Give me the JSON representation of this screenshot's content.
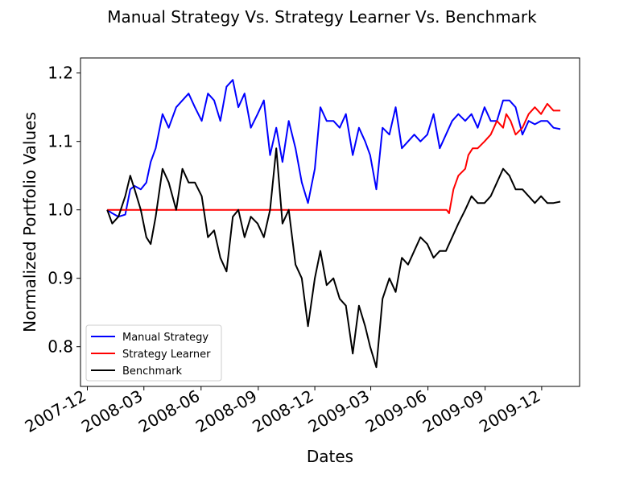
{
  "chart_data": {
    "type": "line",
    "title": "Manual Strategy Vs. Strategy Learner Vs. Benchmark",
    "xlabel": "Dates",
    "ylabel": "Normalized Portfolio Values",
    "xlim": [
      "2007-11-20",
      "2010-01-31"
    ],
    "ylim": [
      0.742,
      1.222
    ],
    "x_ticks": [
      "2007-12",
      "2008-03",
      "2008-06",
      "2008-09",
      "2008-12",
      "2009-03",
      "2009-06",
      "2009-09",
      "2009-12"
    ],
    "y_ticks": [
      "0.8",
      "0.9",
      "1.0",
      "1.1",
      "1.2"
    ],
    "legend_position": "lower-left",
    "grid": false,
    "series": [
      {
        "name": "Manual Strategy",
        "color": "#0000ff",
        "points": [
          [
            "2008-01-02",
            1.0
          ],
          [
            "2008-01-10",
            0.995
          ],
          [
            "2008-01-20",
            0.99
          ],
          [
            "2008-01-31",
            0.993
          ],
          [
            "2008-02-08",
            1.03
          ],
          [
            "2008-02-15",
            1.035
          ],
          [
            "2008-02-25",
            1.03
          ],
          [
            "2008-03-05",
            1.04
          ],
          [
            "2008-03-12",
            1.07
          ],
          [
            "2008-03-20",
            1.09
          ],
          [
            "2008-03-31",
            1.14
          ],
          [
            "2008-04-10",
            1.12
          ],
          [
            "2008-04-22",
            1.15
          ],
          [
            "2008-05-02",
            1.16
          ],
          [
            "2008-05-12",
            1.17
          ],
          [
            "2008-05-22",
            1.15
          ],
          [
            "2008-06-02",
            1.13
          ],
          [
            "2008-06-12",
            1.17
          ],
          [
            "2008-06-22",
            1.16
          ],
          [
            "2008-07-02",
            1.13
          ],
          [
            "2008-07-12",
            1.18
          ],
          [
            "2008-07-22",
            1.19
          ],
          [
            "2008-07-31",
            1.15
          ],
          [
            "2008-08-10",
            1.17
          ],
          [
            "2008-08-20",
            1.12
          ],
          [
            "2008-08-31",
            1.14
          ],
          [
            "2008-09-10",
            1.16
          ],
          [
            "2008-09-20",
            1.08
          ],
          [
            "2008-09-30",
            1.12
          ],
          [
            "2008-10-10",
            1.07
          ],
          [
            "2008-10-20",
            1.13
          ],
          [
            "2008-10-31",
            1.09
          ],
          [
            "2008-11-10",
            1.04
          ],
          [
            "2008-11-20",
            1.01
          ],
          [
            "2008-12-01",
            1.06
          ],
          [
            "2008-12-10",
            1.15
          ],
          [
            "2008-12-20",
            1.13
          ],
          [
            "2008-12-31",
            1.13
          ],
          [
            "2009-01-10",
            1.12
          ],
          [
            "2009-01-20",
            1.14
          ],
          [
            "2009-01-31",
            1.08
          ],
          [
            "2009-02-10",
            1.12
          ],
          [
            "2009-02-20",
            1.1
          ],
          [
            "2009-02-28",
            1.08
          ],
          [
            "2009-03-10",
            1.03
          ],
          [
            "2009-03-20",
            1.12
          ],
          [
            "2009-03-31",
            1.11
          ],
          [
            "2009-04-10",
            1.15
          ],
          [
            "2009-04-20",
            1.09
          ],
          [
            "2009-04-30",
            1.1
          ],
          [
            "2009-05-10",
            1.11
          ],
          [
            "2009-05-20",
            1.1
          ],
          [
            "2009-05-31",
            1.11
          ],
          [
            "2009-06-10",
            1.14
          ],
          [
            "2009-06-20",
            1.09
          ],
          [
            "2009-06-30",
            1.11
          ],
          [
            "2009-07-10",
            1.13
          ],
          [
            "2009-07-20",
            1.14
          ],
          [
            "2009-07-31",
            1.13
          ],
          [
            "2009-08-10",
            1.14
          ],
          [
            "2009-08-20",
            1.12
          ],
          [
            "2009-08-31",
            1.15
          ],
          [
            "2009-09-10",
            1.13
          ],
          [
            "2009-09-20",
            1.13
          ],
          [
            "2009-09-30",
            1.16
          ],
          [
            "2009-10-10",
            1.16
          ],
          [
            "2009-10-20",
            1.15
          ],
          [
            "2009-10-31",
            1.11
          ],
          [
            "2009-11-10",
            1.13
          ],
          [
            "2009-11-20",
            1.125
          ],
          [
            "2009-11-30",
            1.13
          ],
          [
            "2009-12-10",
            1.13
          ],
          [
            "2009-12-20",
            1.12
          ],
          [
            "2009-12-31",
            1.118
          ]
        ]
      },
      {
        "name": "Strategy Learner",
        "color": "#ff0000",
        "points": [
          [
            "2008-01-02",
            1.0
          ],
          [
            "2009-07-01",
            1.0
          ],
          [
            "2009-07-05",
            0.995
          ],
          [
            "2009-07-12",
            1.03
          ],
          [
            "2009-07-20",
            1.05
          ],
          [
            "2009-07-31",
            1.06
          ],
          [
            "2009-08-05",
            1.08
          ],
          [
            "2009-08-12",
            1.09
          ],
          [
            "2009-08-20",
            1.09
          ],
          [
            "2009-08-31",
            1.1
          ],
          [
            "2009-09-10",
            1.11
          ],
          [
            "2009-09-20",
            1.13
          ],
          [
            "2009-09-30",
            1.12
          ],
          [
            "2009-10-05",
            1.14
          ],
          [
            "2009-10-12",
            1.13
          ],
          [
            "2009-10-20",
            1.11
          ],
          [
            "2009-10-31",
            1.12
          ],
          [
            "2009-11-10",
            1.14
          ],
          [
            "2009-11-20",
            1.15
          ],
          [
            "2009-11-30",
            1.14
          ],
          [
            "2009-12-10",
            1.155
          ],
          [
            "2009-12-20",
            1.145
          ],
          [
            "2009-12-31",
            1.145
          ]
        ]
      },
      {
        "name": "Benchmark",
        "color": "#000000",
        "points": [
          [
            "2008-01-02",
            1.0
          ],
          [
            "2008-01-10",
            0.98
          ],
          [
            "2008-01-20",
            0.99
          ],
          [
            "2008-01-31",
            1.02
          ],
          [
            "2008-02-08",
            1.05
          ],
          [
            "2008-02-15",
            1.03
          ],
          [
            "2008-02-25",
            1.0
          ],
          [
            "2008-03-05",
            0.96
          ],
          [
            "2008-03-12",
            0.95
          ],
          [
            "2008-03-20",
            0.99
          ],
          [
            "2008-03-31",
            1.06
          ],
          [
            "2008-04-10",
            1.04
          ],
          [
            "2008-04-22",
            1.0
          ],
          [
            "2008-05-02",
            1.06
          ],
          [
            "2008-05-12",
            1.04
          ],
          [
            "2008-05-22",
            1.04
          ],
          [
            "2008-06-02",
            1.02
          ],
          [
            "2008-06-12",
            0.96
          ],
          [
            "2008-06-22",
            0.97
          ],
          [
            "2008-07-02",
            0.93
          ],
          [
            "2008-07-12",
            0.91
          ],
          [
            "2008-07-22",
            0.99
          ],
          [
            "2008-07-31",
            1.0
          ],
          [
            "2008-08-10",
            0.96
          ],
          [
            "2008-08-20",
            0.99
          ],
          [
            "2008-08-31",
            0.98
          ],
          [
            "2008-09-10",
            0.96
          ],
          [
            "2008-09-20",
            1.0
          ],
          [
            "2008-09-30",
            1.09
          ],
          [
            "2008-10-10",
            0.98
          ],
          [
            "2008-10-20",
            1.0
          ],
          [
            "2008-10-31",
            0.92
          ],
          [
            "2008-11-10",
            0.9
          ],
          [
            "2008-11-20",
            0.83
          ],
          [
            "2008-12-01",
            0.9
          ],
          [
            "2008-12-10",
            0.94
          ],
          [
            "2008-12-20",
            0.89
          ],
          [
            "2008-12-31",
            0.9
          ],
          [
            "2009-01-10",
            0.87
          ],
          [
            "2009-01-20",
            0.86
          ],
          [
            "2009-01-31",
            0.79
          ],
          [
            "2009-02-10",
            0.86
          ],
          [
            "2009-02-20",
            0.83
          ],
          [
            "2009-02-28",
            0.8
          ],
          [
            "2009-03-10",
            0.77
          ],
          [
            "2009-03-20",
            0.87
          ],
          [
            "2009-03-31",
            0.9
          ],
          [
            "2009-04-10",
            0.88
          ],
          [
            "2009-04-20",
            0.93
          ],
          [
            "2009-04-30",
            0.92
          ],
          [
            "2009-05-10",
            0.94
          ],
          [
            "2009-05-20",
            0.96
          ],
          [
            "2009-05-31",
            0.95
          ],
          [
            "2009-06-10",
            0.93
          ],
          [
            "2009-06-20",
            0.94
          ],
          [
            "2009-06-30",
            0.94
          ],
          [
            "2009-07-10",
            0.96
          ],
          [
            "2009-07-20",
            0.98
          ],
          [
            "2009-07-31",
            1.0
          ],
          [
            "2009-08-10",
            1.02
          ],
          [
            "2009-08-20",
            1.01
          ],
          [
            "2009-08-31",
            1.01
          ],
          [
            "2009-09-10",
            1.02
          ],
          [
            "2009-09-20",
            1.04
          ],
          [
            "2009-09-30",
            1.06
          ],
          [
            "2009-10-10",
            1.05
          ],
          [
            "2009-10-20",
            1.03
          ],
          [
            "2009-10-31",
            1.03
          ],
          [
            "2009-11-10",
            1.02
          ],
          [
            "2009-11-20",
            1.01
          ],
          [
            "2009-11-30",
            1.02
          ],
          [
            "2009-12-10",
            1.01
          ],
          [
            "2009-12-20",
            1.01
          ],
          [
            "2009-12-31",
            1.012
          ]
        ]
      }
    ]
  }
}
